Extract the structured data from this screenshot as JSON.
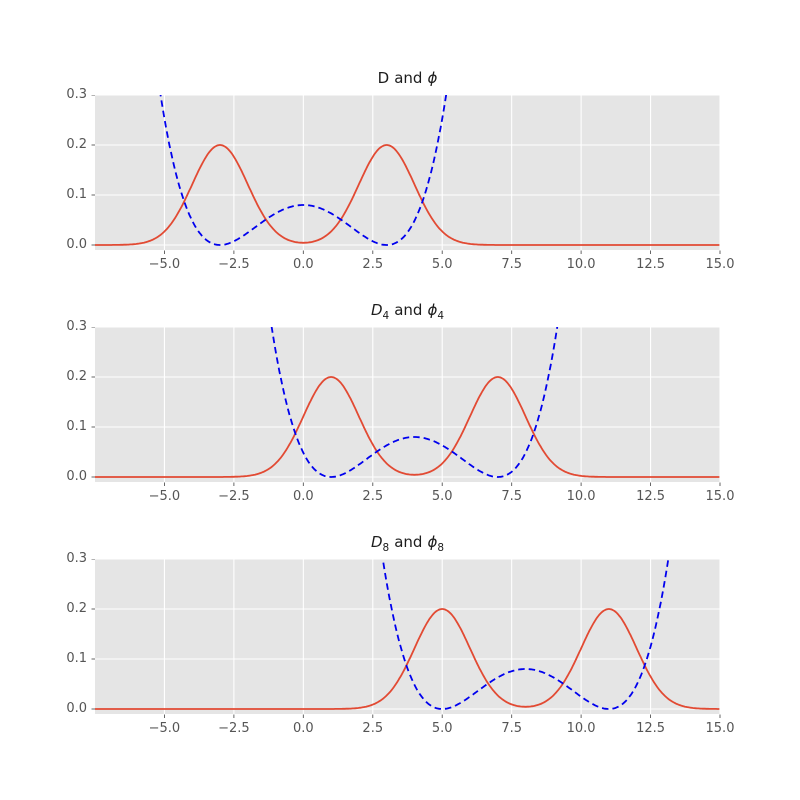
{
  "figure": {
    "background": "#ffffff",
    "panel_bg": "#e5e5e5",
    "grid_color": "#ffffff",
    "tick_color": "#555555",
    "label_color": "#555555",
    "title_color": "#1c1c1c",
    "legend_style": {
      "bg": "#ffffff",
      "border": "#cccccc",
      "shadow": "rgba(70,70,70,0.45)"
    }
  },
  "chart_data": [
    {
      "type": "line",
      "title": {
        "plain": "D and ϕ",
        "d_base": "D",
        "d_sub": "",
        "d_italic": false,
        "and_word": "and",
        "phi_base": "ϕ",
        "phi_sub": ""
      },
      "xlim": [
        -7.5,
        15
      ],
      "ylim": [
        -0.01,
        0.3
      ],
      "x_tick_values": [
        -5,
        -2.5,
        0,
        2.5,
        5,
        7.5,
        10,
        12.5,
        15
      ],
      "x_tick_labels": [
        "−5.0",
        "−2.5",
        "0.0",
        "2.5",
        "5.0",
        "7.5",
        "10.0",
        "12.5",
        "15.0"
      ],
      "y_tick_values": [
        0,
        0.1,
        0.2,
        0.3
      ],
      "y_tick_labels": [
        "0.0",
        "0.1",
        "0.2",
        "0.3"
      ],
      "grid": true,
      "legend_position": "upper-right",
      "series": [
        {
          "name": "D",
          "sub": "",
          "kind": "gaussian_mixture",
          "means": [
            -3,
            3
          ],
          "sigma": 1.0,
          "peak_y": 0.2,
          "color": "#E24A33",
          "style": "solid",
          "key_points": [
            {
              "x": -3,
              "y": 0.2
            },
            {
              "x": 0,
              "y": 0.005
            },
            {
              "x": 3,
              "y": 0.2
            },
            {
              "x": 6.5,
              "y": 0.0
            }
          ]
        },
        {
          "name": "ϕ",
          "sub": "",
          "kind": "quartic_double_well",
          "wells": [
            -3,
            3
          ],
          "center_x": 0,
          "center_y": 0.08,
          "color": "#0000EE",
          "style": "dashed",
          "key_points": [
            {
              "x": -5.15,
              "y": 0.3
            },
            {
              "x": -3,
              "y": 0.0
            },
            {
              "x": 0,
              "y": 0.08
            },
            {
              "x": 3,
              "y": 0.0
            },
            {
              "x": 5.15,
              "y": 0.3
            }
          ]
        }
      ]
    },
    {
      "type": "line",
      "title": {
        "plain": "D₄ and ϕ₄",
        "d_base": "D",
        "d_sub": "4",
        "d_italic": true,
        "and_word": "and",
        "phi_base": "ϕ",
        "phi_sub": "4"
      },
      "xlim": [
        -7.5,
        15
      ],
      "ylim": [
        -0.01,
        0.3
      ],
      "x_tick_values": [
        -5,
        -2.5,
        0,
        2.5,
        5,
        7.5,
        10,
        12.5,
        15
      ],
      "x_tick_labels": [
        "−5.0",
        "−2.5",
        "0.0",
        "2.5",
        "5.0",
        "7.5",
        "10.0",
        "12.5",
        "15.0"
      ],
      "y_tick_values": [
        0,
        0.1,
        0.2,
        0.3
      ],
      "y_tick_labels": [
        "0.0",
        "0.1",
        "0.2",
        "0.3"
      ],
      "grid": true,
      "legend_position": "upper-right",
      "series": [
        {
          "name": "D",
          "sub": "4",
          "kind": "gaussian_mixture",
          "means": [
            1,
            7
          ],
          "sigma": 1.0,
          "peak_y": 0.2,
          "color": "#E24A33",
          "style": "solid",
          "key_points": [
            {
              "x": 1,
              "y": 0.2
            },
            {
              "x": 4,
              "y": 0.005
            },
            {
              "x": 7,
              "y": 0.2
            }
          ]
        },
        {
          "name": "ϕ",
          "sub": "4",
          "kind": "quartic_double_well",
          "wells": [
            1,
            7
          ],
          "center_x": 4,
          "center_y": 0.08,
          "color": "#0000EE",
          "style": "dashed",
          "key_points": [
            {
              "x": -1.15,
              "y": 0.3
            },
            {
              "x": 1,
              "y": 0.0
            },
            {
              "x": 4,
              "y": 0.08
            },
            {
              "x": 7,
              "y": 0.0
            },
            {
              "x": 9.15,
              "y": 0.3
            }
          ]
        }
      ]
    },
    {
      "type": "line",
      "title": {
        "plain": "D₈ and ϕ₈",
        "d_base": "D",
        "d_sub": "8",
        "d_italic": true,
        "and_word": "and",
        "phi_base": "ϕ",
        "phi_sub": "8"
      },
      "xlim": [
        -7.5,
        15
      ],
      "ylim": [
        -0.01,
        0.3
      ],
      "x_tick_values": [
        -5,
        -2.5,
        0,
        2.5,
        5,
        7.5,
        10,
        12.5,
        15
      ],
      "x_tick_labels": [
        "−5.0",
        "−2.5",
        "0.0",
        "2.5",
        "5.0",
        "7.5",
        "10.0",
        "12.5",
        "15.0"
      ],
      "y_tick_values": [
        0,
        0.1,
        0.2,
        0.3
      ],
      "y_tick_labels": [
        "0.0",
        "0.1",
        "0.2",
        "0.3"
      ],
      "grid": true,
      "legend_position": "upper-right",
      "series": [
        {
          "name": "D",
          "sub": "8",
          "kind": "gaussian_mixture",
          "means": [
            5,
            11
          ],
          "sigma": 1.0,
          "peak_y": 0.2,
          "color": "#E24A33",
          "style": "solid",
          "key_points": [
            {
              "x": 5,
              "y": 0.2
            },
            {
              "x": 8,
              "y": 0.005
            },
            {
              "x": 11,
              "y": 0.2
            }
          ]
        },
        {
          "name": "ϕ",
          "sub": "8",
          "kind": "quartic_double_well",
          "wells": [
            5,
            11
          ],
          "center_x": 8,
          "center_y": 0.08,
          "color": "#0000EE",
          "style": "dashed",
          "key_points": [
            {
              "x": 2.85,
              "y": 0.3
            },
            {
              "x": 5,
              "y": 0.0
            },
            {
              "x": 8,
              "y": 0.08
            },
            {
              "x": 11,
              "y": 0.0
            },
            {
              "x": 13.15,
              "y": 0.3
            }
          ]
        }
      ]
    }
  ]
}
